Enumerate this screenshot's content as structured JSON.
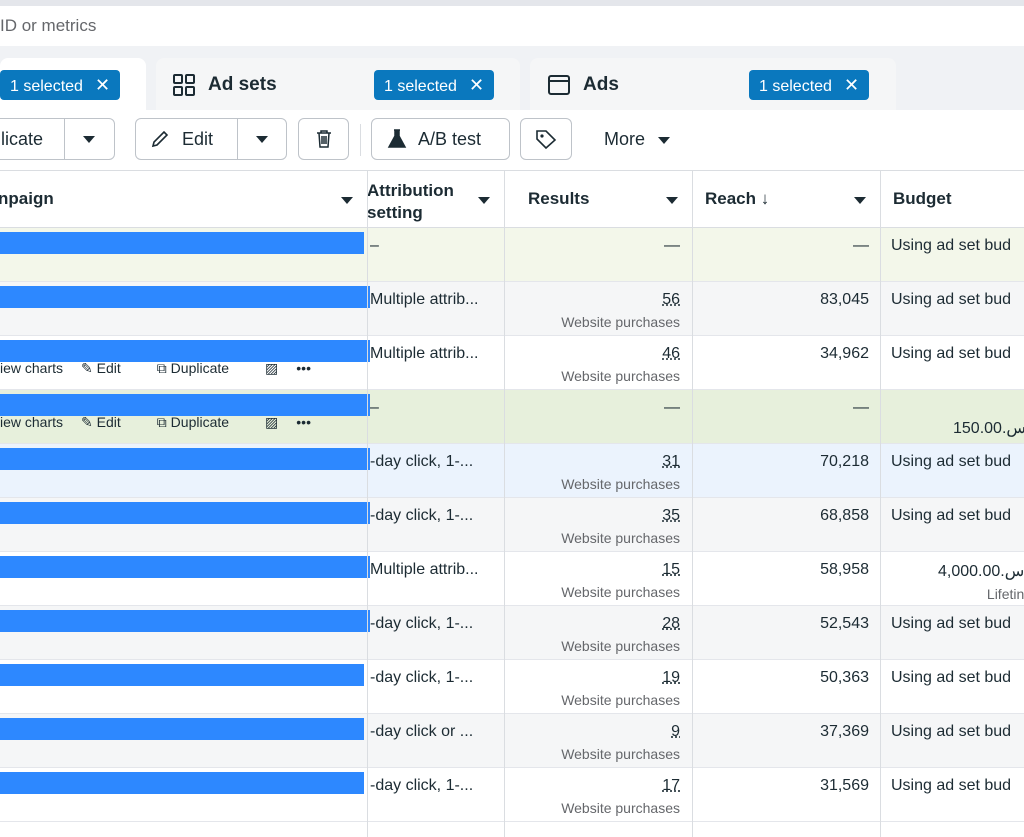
{
  "search": {
    "placeholder_text": "ID or metrics"
  },
  "tabs": [
    {
      "name": "",
      "chip": "1 selected",
      "icon": "campaigns-icon"
    },
    {
      "name": "Ad sets",
      "chip": "1 selected",
      "icon": "grid-icon"
    },
    {
      "name": "Ads",
      "chip": "1 selected",
      "icon": "window-icon"
    }
  ],
  "toolbar": {
    "duplicate_label": "licate",
    "edit_label": "Edit",
    "ab_label": "A/B test",
    "more_label": "More"
  },
  "columns": {
    "campaign": "npaign",
    "attribution_line1": "Attribution",
    "attribution_line2": "setting",
    "results": "Results",
    "reach": "Reach ↓",
    "budget": "Budget"
  },
  "row_actions": {
    "view": "iew charts",
    "edit": "Edit",
    "duplicate": "Duplicate",
    "more": "•••"
  },
  "rows": [
    {
      "attribution": "–",
      "result": "—",
      "result_sub": "",
      "reach": "—",
      "budget": "Using ad set bud",
      "budget_sub": "",
      "bg": "#f3f7ea",
      "bar": 240
    },
    {
      "attribution": "Multiple attrib...",
      "result": "56",
      "result_sub": "Website purchases",
      "reach": "83,045",
      "budget": "Using ad set bud",
      "budget_sub": "",
      "bg": "#f5f6f7",
      "bar": 298
    },
    {
      "attribution": "Multiple attrib...",
      "result": "46",
      "result_sub": "Website purchases",
      "reach": "34,962",
      "budget": "Using ad set bud",
      "budget_sub": "",
      "bg": "#ffffff",
      "bar": 352
    },
    {
      "attribution": "–",
      "result": "—",
      "result_sub": "",
      "reach": "—",
      "budget": "150.00.س",
      "budget_sub": "",
      "bg": "#e7f0dc",
      "bar": 406
    },
    {
      "attribution": "-day click, 1-...",
      "result": "31",
      "result_sub": "Website purchases",
      "reach": "70,218",
      "budget": "Using ad set bud",
      "budget_sub": "",
      "bg": "#ebf3fd",
      "bar": 461
    },
    {
      "attribution": "-day click, 1-...",
      "result": "35",
      "result_sub": "Website purchases",
      "reach": "68,858",
      "budget": "Using ad set bud",
      "budget_sub": "",
      "bg": "#f5f6f7",
      "bar": 515
    },
    {
      "attribution": "Multiple attrib...",
      "result": "15",
      "result_sub": "Website purchases",
      "reach": "58,958",
      "budget": "4,000.00.س",
      "budget_sub": "Lifetin",
      "bg": "#ffffff",
      "bar": 569
    },
    {
      "attribution": "-day click, 1-...",
      "result": "28",
      "result_sub": "Website purchases",
      "reach": "52,543",
      "budget": "Using ad set bud",
      "budget_sub": "",
      "bg": "#f5f6f7",
      "bar": 623
    },
    {
      "attribution": "-day click, 1-...",
      "result": "19",
      "result_sub": "Website purchases",
      "reach": "50,363",
      "budget": "Using ad set bud",
      "budget_sub": "",
      "bg": "#ffffff",
      "bar": 677
    },
    {
      "attribution": "-day click or ...",
      "result": "9",
      "result_sub": "Website purchases",
      "reach": "37,369",
      "budget": "Using ad set bud",
      "budget_sub": "",
      "bg": "#f5f6f7",
      "bar": 731
    },
    {
      "attribution": "-day click, 1-...",
      "result": "17",
      "result_sub": "Website purchases",
      "reach": "31,569",
      "budget": "Using ad set bud",
      "budget_sub": "",
      "bg": "#ffffff",
      "bar": 785
    }
  ],
  "colors": {
    "accent": "#0a78be",
    "redaction": "#2d88ff"
  }
}
